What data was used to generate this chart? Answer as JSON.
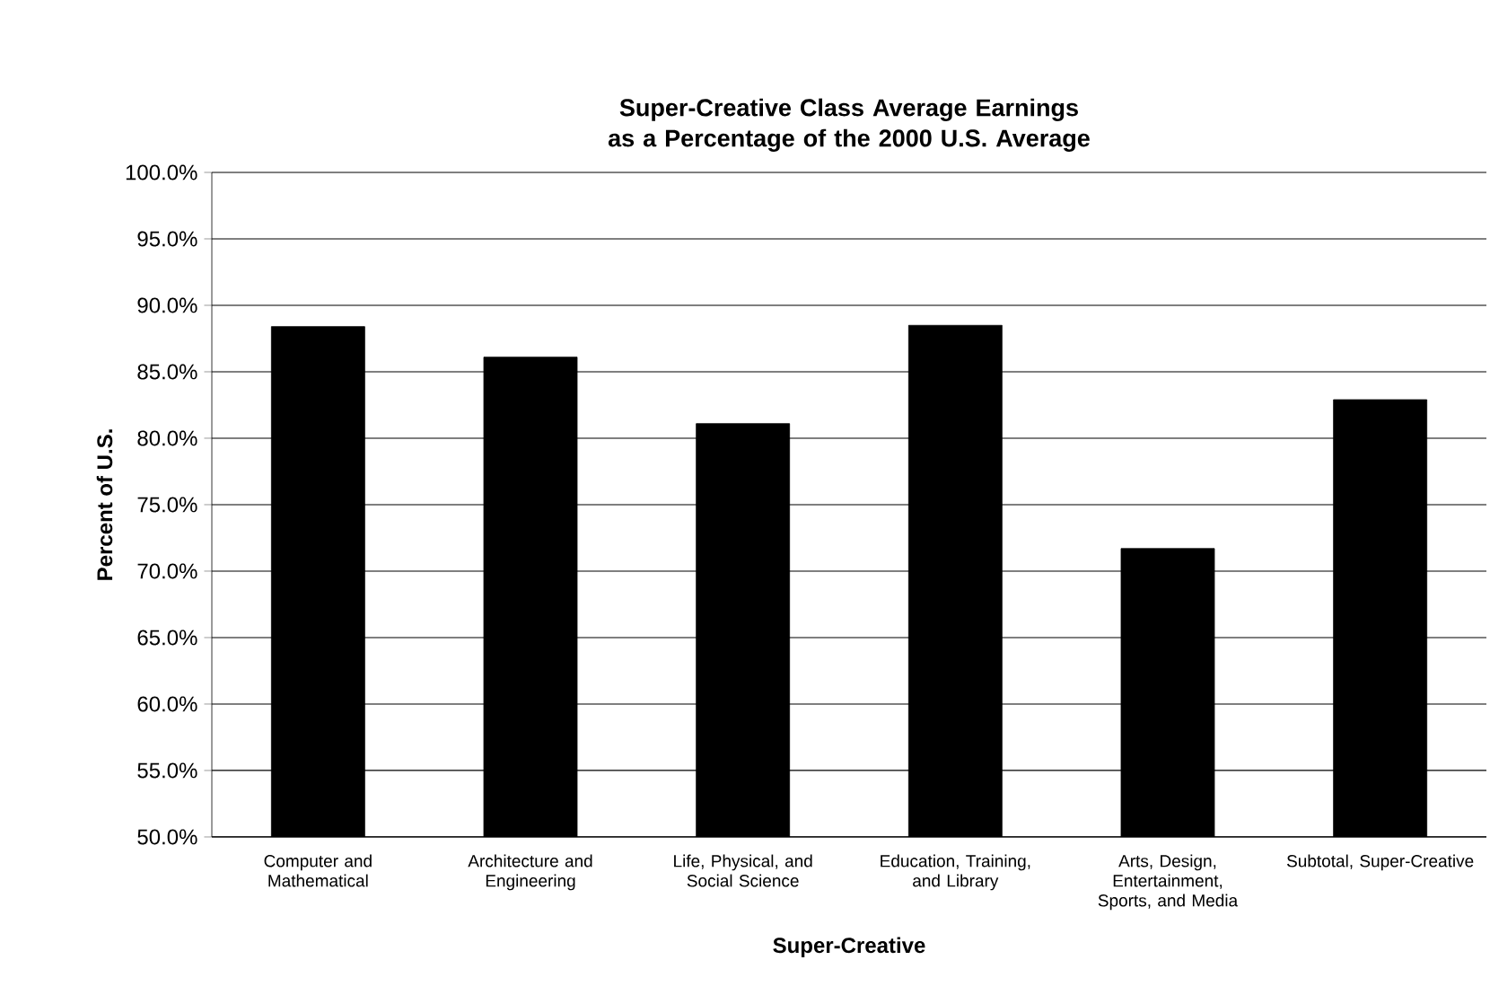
{
  "chart_data": {
    "type": "bar",
    "title": "Super-Creative Class Average Earnings as a Percentage of the 2000 U.S. Average",
    "xlabel": "Super-Creative",
    "ylabel": "Percent of U.S.",
    "categories": [
      "Computer and Mathematical",
      "Architecture and Engineering",
      "Life, Physical, and Social Science",
      "Education, Training, and Library",
      "Arts, Design, Entertainment, Sports, and Media",
      "Subtotal, Super-Creative"
    ],
    "values": [
      88.4,
      86.1,
      81.1,
      88.5,
      71.7,
      82.9
    ],
    "color": "#000000",
    "ylim": [
      50,
      100
    ],
    "yticks": [
      {
        "value": 50,
        "label": "50.0%"
      },
      {
        "value": 55,
        "label": "55.0%"
      },
      {
        "value": 60,
        "label": "60.0%"
      },
      {
        "value": 65,
        "label": "65.0%"
      },
      {
        "value": 70,
        "label": "70.0%"
      },
      {
        "value": 75,
        "label": "75.0%"
      },
      {
        "value": 80,
        "label": "80.0%"
      },
      {
        "value": 85,
        "label": "85.0%"
      },
      {
        "value": 90,
        "label": "90.0%"
      },
      {
        "value": 95,
        "label": "95.0%"
      },
      {
        "value": 100,
        "label": "100.0%"
      }
    ],
    "grid": "y"
  }
}
